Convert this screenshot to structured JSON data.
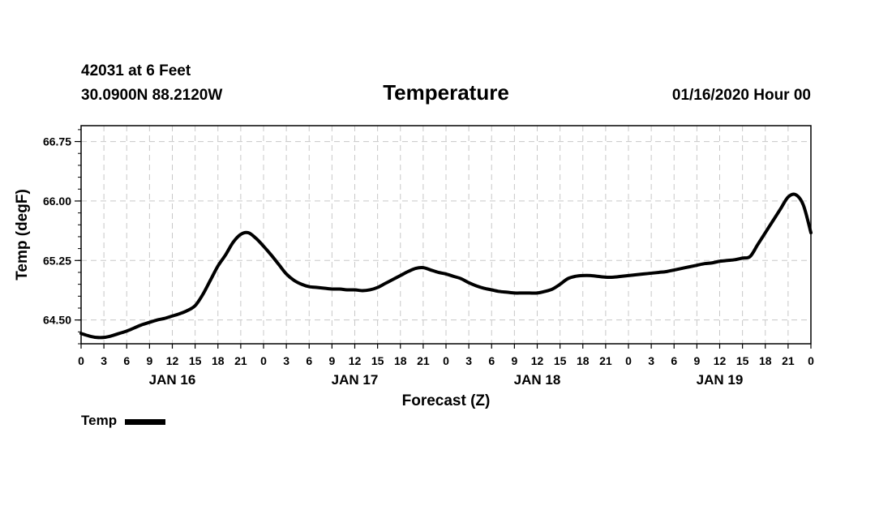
{
  "header": {
    "station": "42031 at 6 Feet",
    "coords": "30.0900N 88.2120W",
    "issued": "01/16/2020 Hour 00"
  },
  "chart_data": {
    "type": "line",
    "title": "Temperature",
    "xlabel": "Forecast (Z)",
    "ylabel": "Temp (degF)",
    "x_unit": "forecast hour",
    "xlim": [
      0,
      96
    ],
    "ylim": [
      64.2,
      66.95
    ],
    "yticks": [
      64.5,
      65.25,
      66.0,
      66.75
    ],
    "ytick_labels": [
      "64.50",
      "65.25",
      "66.00",
      "66.75"
    ],
    "xtick_step": 3,
    "xtick_labels": [
      "0",
      "3",
      "6",
      "9",
      "12",
      "15",
      "18",
      "21",
      "0",
      "3",
      "6",
      "9",
      "12",
      "15",
      "18",
      "21",
      "0",
      "3",
      "6",
      "9",
      "12",
      "15",
      "18",
      "21",
      "0",
      "3",
      "6",
      "9",
      "12",
      "15",
      "18",
      "21",
      "0"
    ],
    "day_labels": [
      {
        "label": "JAN 16",
        "hour": 12
      },
      {
        "label": "JAN 17",
        "hour": 36
      },
      {
        "label": "JAN 18",
        "hour": 60
      },
      {
        "label": "JAN 19",
        "hour": 84
      }
    ],
    "grid": true,
    "legend_position": "bottom-left",
    "series": [
      {
        "name": "Temp",
        "color": "#000000",
        "x": [
          0,
          1,
          2,
          3,
          4,
          5,
          6,
          7,
          8,
          9,
          10,
          11,
          12,
          13,
          14,
          15,
          16,
          17,
          18,
          19,
          20,
          21,
          22,
          23,
          24,
          25,
          26,
          27,
          28,
          29,
          30,
          31,
          32,
          33,
          34,
          35,
          36,
          37,
          38,
          39,
          40,
          41,
          42,
          43,
          44,
          45,
          46,
          47,
          48,
          49,
          50,
          51,
          52,
          53,
          54,
          55,
          56,
          57,
          58,
          59,
          60,
          61,
          62,
          63,
          64,
          65,
          66,
          67,
          68,
          69,
          70,
          71,
          72,
          73,
          74,
          75,
          76,
          77,
          78,
          79,
          80,
          81,
          82,
          83,
          84,
          85,
          86,
          87,
          88,
          89,
          90,
          91,
          92,
          93,
          94,
          95,
          96
        ],
        "values": [
          64.33,
          64.3,
          64.28,
          64.28,
          64.3,
          64.33,
          64.36,
          64.4,
          64.44,
          64.47,
          64.5,
          64.52,
          64.55,
          64.58,
          64.62,
          64.68,
          64.82,
          65.0,
          65.18,
          65.32,
          65.48,
          65.58,
          65.6,
          65.53,
          65.43,
          65.32,
          65.2,
          65.08,
          65.0,
          64.95,
          64.92,
          64.91,
          64.9,
          64.89,
          64.89,
          64.88,
          64.88,
          64.87,
          64.88,
          64.91,
          64.96,
          65.01,
          65.06,
          65.11,
          65.15,
          65.16,
          65.13,
          65.1,
          65.08,
          65.05,
          65.02,
          64.97,
          64.93,
          64.9,
          64.88,
          64.86,
          64.85,
          64.84,
          64.84,
          64.84,
          64.84,
          64.86,
          64.89,
          64.95,
          65.02,
          65.05,
          65.06,
          65.06,
          65.05,
          65.04,
          65.04,
          65.05,
          65.06,
          65.07,
          65.08,
          65.09,
          65.1,
          65.11,
          65.13,
          65.15,
          65.17,
          65.19,
          65.21,
          65.22,
          65.24,
          65.25,
          65.26,
          65.28,
          65.3,
          65.45,
          65.6,
          65.75,
          65.9,
          66.05,
          66.08,
          65.95,
          65.6
        ]
      }
    ]
  }
}
